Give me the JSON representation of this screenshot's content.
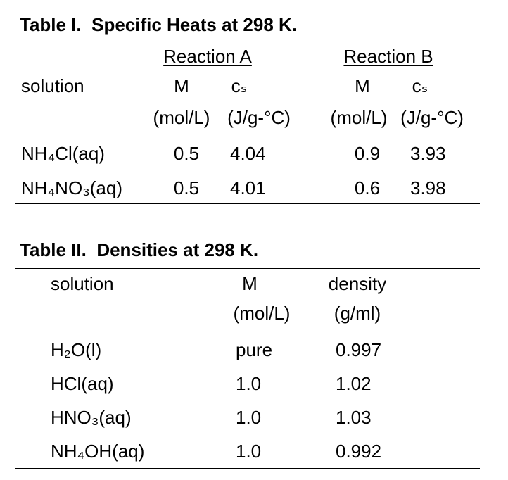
{
  "table1": {
    "title": "Table I.  Specific Heats at 298 K.",
    "groups": [
      "Reaction A",
      "Reaction B"
    ],
    "headers": [
      "solution",
      "M",
      "cₛ",
      "M",
      "cₛ"
    ],
    "units": [
      "(mol/L)",
      "(J/g-°C)",
      "(mol/L)",
      "(J/g-°C)"
    ],
    "rows": [
      [
        "NH₄Cl(aq)",
        "0.5",
        "4.04",
        "0.9",
        "3.93"
      ],
      [
        "NH₄NO₃(aq)",
        "0.5",
        "4.01",
        "0.6",
        "3.98"
      ]
    ]
  },
  "table2": {
    "title": "Table II.  Densities at 298 K.",
    "headers": [
      "solution",
      "M",
      "density"
    ],
    "units": [
      "(mol/L)",
      "(g/ml)"
    ],
    "rows": [
      [
        "H₂O(l)",
        "pure",
        "0.997"
      ],
      [
        "HCl(aq)",
        "1.0",
        "1.02"
      ],
      [
        "HNO₃(aq)",
        "1.0",
        "1.03"
      ],
      [
        "NH₄OH(aq)",
        "1.0",
        "0.992"
      ]
    ]
  }
}
